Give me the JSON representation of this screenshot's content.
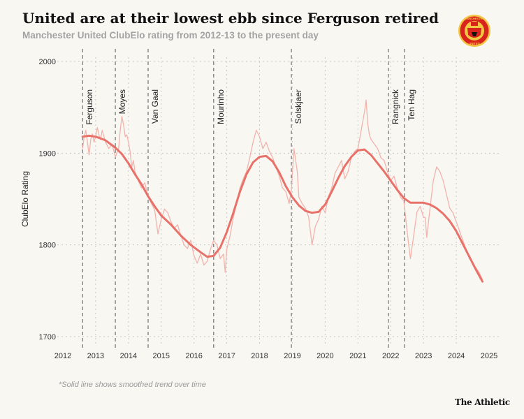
{
  "header": {
    "title": "United are at their lowest ebb since Ferguson retired",
    "subtitle": "Manchester United ClubElo rating from 2012-13 to the present day"
  },
  "footnote": "*Solid line shows smoothed trend over time",
  "credit": "The Athletic",
  "logo": {
    "icon": "manchester-united-crest-icon",
    "top_text": "MANCHESTER",
    "bottom_text": "UNITED"
  },
  "colors": {
    "trend": "#e8716a",
    "raw": "#f2b3ad",
    "grid": "#c9c9c9",
    "divider": "#555555",
    "background": "#f8f7f2"
  },
  "chart_data": {
    "type": "line",
    "ylabel": "ClubElo Rating",
    "xlabel": "",
    "xlim": [
      2012,
      2025
    ],
    "ylim": [
      1700,
      2000
    ],
    "x_ticks": [
      2012,
      2013,
      2014,
      2015,
      2016,
      2017,
      2018,
      2019,
      2020,
      2021,
      2022,
      2023,
      2024,
      2025
    ],
    "y_ticks": [
      1700,
      1800,
      1900,
      2000
    ],
    "grid": true,
    "managers": [
      {
        "name": "Ferguson",
        "start": 2012.6
      },
      {
        "name": "Moyes",
        "start": 2013.6
      },
      {
        "name": "Van Gaal",
        "start": 2014.6
      },
      {
        "name": "Mourinho",
        "start": 2016.6
      },
      {
        "name": "Solskjaer",
        "start": 2018.97
      },
      {
        "name": "Rangnick",
        "start": 2021.93
      },
      {
        "name": "Ten Hag",
        "start": 2022.42
      }
    ],
    "series": [
      {
        "style": "smoothed",
        "x": [
          2012.6,
          2012.8,
          2013.0,
          2013.3,
          2013.6,
          2013.8,
          2014.0,
          2014.2,
          2014.4,
          2014.6,
          2014.8,
          2015.0,
          2015.3,
          2015.6,
          2015.9,
          2016.2,
          2016.4,
          2016.6,
          2016.8,
          2017.0,
          2017.2,
          2017.4,
          2017.6,
          2017.8,
          2018.0,
          2018.2,
          2018.4,
          2018.6,
          2018.8,
          2019.0,
          2019.2,
          2019.4,
          2019.6,
          2019.8,
          2020.0,
          2020.2,
          2020.4,
          2020.6,
          2020.8,
          2021.0,
          2021.2,
          2021.4,
          2021.6,
          2021.8,
          2022.0,
          2022.2,
          2022.4,
          2022.6,
          2022.8,
          2023.0,
          2023.2,
          2023.4,
          2023.6,
          2023.8,
          2024.0,
          2024.2,
          2024.4,
          2024.6,
          2024.8
        ],
        "y": [
          1918,
          1919,
          1918,
          1914,
          1906,
          1899,
          1889,
          1877,
          1866,
          1853,
          1842,
          1832,
          1822,
          1810,
          1800,
          1792,
          1787,
          1788,
          1797,
          1814,
          1835,
          1858,
          1877,
          1890,
          1896,
          1897,
          1891,
          1879,
          1864,
          1852,
          1843,
          1837,
          1835,
          1836,
          1844,
          1858,
          1873,
          1886,
          1896,
          1903,
          1904,
          1898,
          1889,
          1880,
          1870,
          1860,
          1851,
          1846,
          1846,
          1846,
          1844,
          1840,
          1834,
          1826,
          1815,
          1801,
          1787,
          1773,
          1760
        ]
      },
      {
        "style": "raw",
        "x": [
          2012.6,
          2012.65,
          2012.7,
          2012.75,
          2012.8,
          2012.85,
          2012.9,
          2012.95,
          2013.0,
          2013.05,
          2013.1,
          2013.15,
          2013.2,
          2013.3,
          2013.4,
          2013.5,
          2013.6,
          2013.7,
          2013.75,
          2013.8,
          2013.85,
          2013.9,
          2013.95,
          2014.0,
          2014.05,
          2014.1,
          2014.15,
          2014.2,
          2014.3,
          2014.4,
          2014.5,
          2014.6,
          2014.7,
          2014.8,
          2014.9,
          2015.0,
          2015.1,
          2015.2,
          2015.3,
          2015.4,
          2015.5,
          2015.6,
          2015.7,
          2015.8,
          2015.9,
          2016.0,
          2016.1,
          2016.2,
          2016.3,
          2016.4,
          2016.5,
          2016.6,
          2016.7,
          2016.8,
          2016.9,
          2016.95,
          2017.0,
          2017.1,
          2017.2,
          2017.3,
          2017.4,
          2017.5,
          2017.6,
          2017.7,
          2017.8,
          2017.9,
          2018.0,
          2018.1,
          2018.2,
          2018.3,
          2018.4,
          2018.5,
          2018.6,
          2018.7,
          2018.8,
          2018.9,
          2018.97,
          2019.05,
          2019.15,
          2019.2,
          2019.3,
          2019.4,
          2019.5,
          2019.6,
          2019.7,
          2019.8,
          2019.9,
          2020.0,
          2020.1,
          2020.2,
          2020.3,
          2020.4,
          2020.5,
          2020.6,
          2020.7,
          2020.8,
          2020.9,
          2021.0,
          2021.1,
          2021.2,
          2021.25,
          2021.3,
          2021.35,
          2021.4,
          2021.5,
          2021.6,
          2021.7,
          2021.8,
          2021.9,
          2022.0,
          2022.1,
          2022.2,
          2022.3,
          2022.4,
          2022.5,
          2022.55,
          2022.6,
          2022.7,
          2022.8,
          2022.9,
          2023.0,
          2023.05,
          2023.1,
          2023.2,
          2023.3,
          2023.4,
          2023.5,
          2023.6,
          2023.7,
          2023.8,
          2023.9,
          2024.0,
          2024.1,
          2024.2,
          2024.3,
          2024.4,
          2024.5,
          2024.6,
          2024.7,
          2024.8
        ],
        "y": [
          1905,
          1918,
          1925,
          1912,
          1898,
          1915,
          1921,
          1912,
          1918,
          1928,
          1920,
          1915,
          1925,
          1912,
          1905,
          1910,
          1896,
          1905,
          1925,
          1940,
          1931,
          1918,
          1920,
          1912,
          1902,
          1885,
          1892,
          1880,
          1870,
          1862,
          1868,
          1852,
          1845,
          1838,
          1812,
          1828,
          1839,
          1835,
          1825,
          1818,
          1822,
          1810,
          1800,
          1796,
          1805,
          1788,
          1780,
          1790,
          1778,
          1782,
          1795,
          1805,
          1800,
          1785,
          1790,
          1770,
          1795,
          1810,
          1830,
          1845,
          1862,
          1872,
          1880,
          1895,
          1912,
          1925,
          1918,
          1905,
          1912,
          1902,
          1895,
          1885,
          1875,
          1862,
          1858,
          1845,
          1860,
          1905,
          1880,
          1852,
          1845,
          1840,
          1830,
          1800,
          1820,
          1828,
          1842,
          1835,
          1853,
          1862,
          1878,
          1885,
          1892,
          1872,
          1880,
          1895,
          1902,
          1905,
          1925,
          1945,
          1958,
          1932,
          1920,
          1915,
          1910,
          1905,
          1895,
          1892,
          1880,
          1870,
          1875,
          1862,
          1852,
          1848,
          1815,
          1800,
          1785,
          1810,
          1836,
          1842,
          1830,
          1830,
          1808,
          1840,
          1870,
          1885,
          1880,
          1870,
          1855,
          1840,
          1835,
          1825,
          1815,
          1805,
          1795,
          1785,
          1780,
          1775,
          1770,
          1762
        ]
      }
    ]
  }
}
